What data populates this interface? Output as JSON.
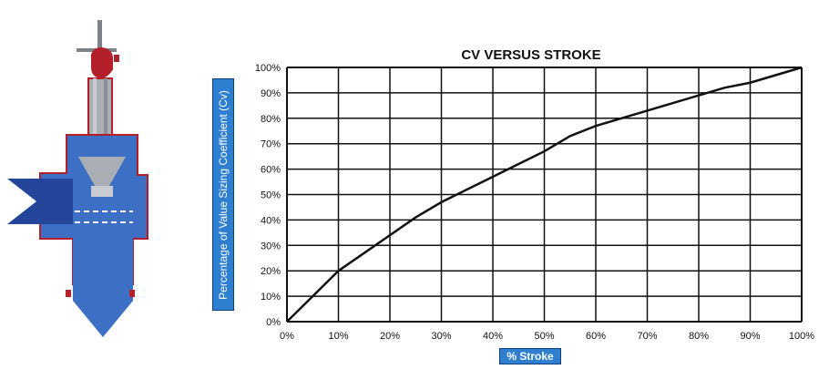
{
  "chart_data": {
    "type": "line",
    "title": "CV VERSUS STROKE",
    "xlabel": "% Stroke",
    "ylabel": "Percentage of Value Sizing Coefficient (Cv)",
    "xlim": [
      0,
      100
    ],
    "ylim": [
      0,
      100
    ],
    "grid": true,
    "x_ticks": [
      "0%",
      "10%",
      "20%",
      "30%",
      "40%",
      "50%",
      "60%",
      "70%",
      "80%",
      "90%",
      "100%"
    ],
    "y_ticks": [
      "0%",
      "10%",
      "20%",
      "30%",
      "40%",
      "50%",
      "60%",
      "70%",
      "80%",
      "90%",
      "100%"
    ],
    "series": [
      {
        "x": [
          0,
          5,
          10,
          15,
          20,
          25,
          30,
          35,
          40,
          45,
          50,
          55,
          60,
          65,
          70,
          75,
          80,
          85,
          90,
          95,
          100
        ],
        "y": [
          0,
          10,
          20,
          27,
          34,
          41,
          47,
          52,
          57,
          62,
          67,
          73,
          77,
          80,
          83,
          86,
          89,
          92,
          94,
          97,
          100
        ]
      }
    ],
    "line_color": "#111111"
  },
  "colors": {
    "valve_blue": "#3d6fc4",
    "valve_blue_dark": "#23469a",
    "valve_red": "#b3202a",
    "valve_grey": "#a9adb4",
    "label_blue": "#2f7fd1"
  },
  "illustration": {
    "icon": "valve-cross-section-icon"
  }
}
